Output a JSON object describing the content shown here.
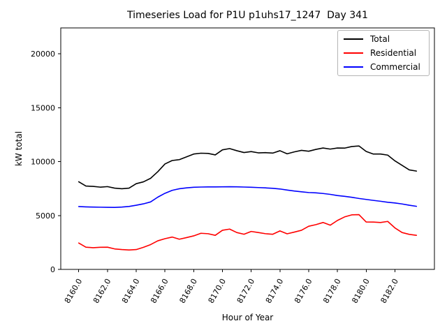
{
  "figure": {
    "title": "Timeseries Load for P1U p1uhs17_1247  Day 341",
    "background": "#ffffff"
  },
  "chart_data": {
    "type": "line",
    "title": "Timeseries Load for P1U p1uhs17_1247  Day 341",
    "xlabel": "Hour of Year",
    "ylabel": "kW total",
    "xlim": [
      8158.75,
      8184.75
    ],
    "ylim": [
      0,
      22400
    ],
    "grid": false,
    "legend_position": "upper right",
    "x_ticks": {
      "values": [
        8160,
        8162,
        8164,
        8166,
        8168,
        8170,
        8172,
        8174,
        8176,
        8178,
        8180,
        8182
      ],
      "labels": [
        "8160.0",
        "8162.0",
        "8164.0",
        "8166.0",
        "8168.0",
        "8170.0",
        "8172.0",
        "8174.0",
        "8176.0",
        "8178.0",
        "8180.0",
        "8182.0"
      ]
    },
    "y_ticks": {
      "values": [
        0,
        5000,
        10000,
        15000,
        20000
      ],
      "labels": [
        "0",
        "5000",
        "10000",
        "15000",
        "20000"
      ]
    },
    "x": [
      8160.0,
      8160.5,
      8161.0,
      8161.5,
      8162.0,
      8162.5,
      8163.0,
      8163.5,
      8164.0,
      8164.5,
      8165.0,
      8165.5,
      8166.0,
      8166.5,
      8167.0,
      8167.5,
      8168.0,
      8168.5,
      8169.0,
      8169.5,
      8170.0,
      8170.5,
      8171.0,
      8171.5,
      8172.0,
      8172.5,
      8173.0,
      8173.5,
      8174.0,
      8174.5,
      8175.0,
      8175.5,
      8176.0,
      8176.5,
      8177.0,
      8177.5,
      8178.0,
      8178.5,
      8179.0,
      8179.5,
      8180.0,
      8180.5,
      8181.0,
      8181.5,
      8182.0,
      8182.5,
      8183.0,
      8183.5
    ],
    "series": [
      {
        "name": "Total",
        "color": "#000000",
        "values": [
          8130,
          7730,
          7700,
          7630,
          7680,
          7540,
          7480,
          7540,
          7950,
          8120,
          8450,
          9060,
          9780,
          10100,
          10180,
          10440,
          10700,
          10780,
          10760,
          10620,
          11090,
          11210,
          11010,
          10840,
          10930,
          10810,
          10830,
          10790,
          11010,
          10720,
          10900,
          11040,
          10960,
          11130,
          11260,
          11160,
          11260,
          11250,
          11400,
          11450,
          10940,
          10700,
          10700,
          10600,
          10070,
          9650,
          9230,
          9120
        ]
      },
      {
        "name": "Residential",
        "color": "#ff0000",
        "values": [
          2450,
          2060,
          2010,
          2050,
          2060,
          1900,
          1840,
          1800,
          1840,
          2050,
          2300,
          2650,
          2850,
          3000,
          2800,
          2950,
          3110,
          3350,
          3310,
          3160,
          3630,
          3740,
          3420,
          3260,
          3520,
          3420,
          3310,
          3260,
          3570,
          3300,
          3460,
          3630,
          4000,
          4150,
          4350,
          4100,
          4540,
          4870,
          5060,
          5080,
          4400,
          4390,
          4350,
          4450,
          3850,
          3420,
          3250,
          3160
        ]
      },
      {
        "name": "Commercial",
        "color": "#0000ff",
        "values": [
          5830,
          5800,
          5780,
          5770,
          5760,
          5750,
          5780,
          5840,
          5950,
          6080,
          6260,
          6700,
          7060,
          7330,
          7480,
          7560,
          7620,
          7640,
          7650,
          7650,
          7660,
          7670,
          7660,
          7640,
          7620,
          7590,
          7560,
          7520,
          7460,
          7360,
          7270,
          7200,
          7130,
          7100,
          7040,
          6960,
          6850,
          6780,
          6690,
          6580,
          6490,
          6400,
          6320,
          6230,
          6160,
          6070,
          5950,
          5850
        ]
      }
    ]
  }
}
